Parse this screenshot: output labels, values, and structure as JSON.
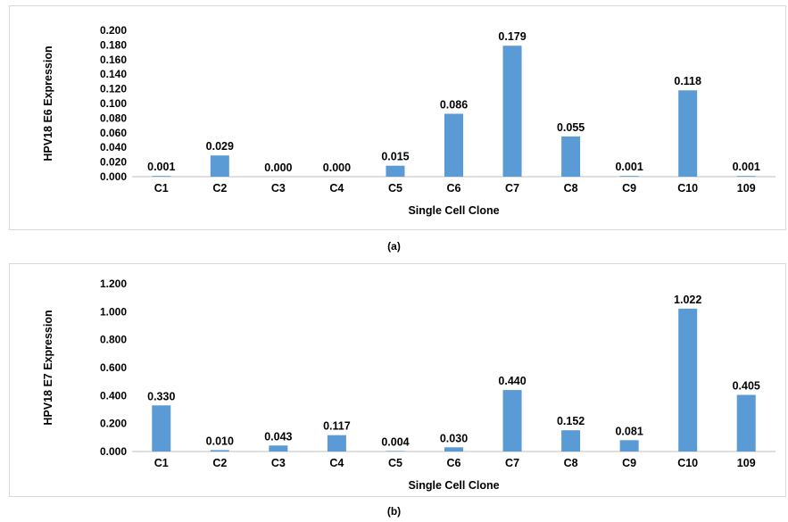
{
  "chart_data": [
    {
      "type": "bar",
      "panel_label": "(a)",
      "ylabel": "HPV18 E6 Expression",
      "xlabel": "Single Cell Clone",
      "categories": [
        "C1",
        "C2",
        "C3",
        "C4",
        "C5",
        "C6",
        "C7",
        "C8",
        "C9",
        "C10",
        "109"
      ],
      "values": [
        0.001,
        0.029,
        0.0,
        0.0,
        0.015,
        0.086,
        0.179,
        0.055,
        0.001,
        0.118,
        0.001
      ],
      "value_labels": [
        "0.001",
        "0.029",
        "0.000",
        "0.000",
        "0.015",
        "0.086",
        "0.179",
        "0.055",
        "0.001",
        "0.118",
        "0.001"
      ],
      "ylim": [
        0,
        0.2
      ],
      "yticks": [
        "0.000",
        "0.020",
        "0.040",
        "0.060",
        "0.080",
        "0.100",
        "0.120",
        "0.140",
        "0.160",
        "0.180",
        "0.200"
      ],
      "grid": false,
      "bar_color": "#5b9bd5"
    },
    {
      "type": "bar",
      "panel_label": "(b)",
      "ylabel": "HPV18 E7 Expression",
      "xlabel": "Single Cell Clone",
      "categories": [
        "C1",
        "C2",
        "C3",
        "C4",
        "C5",
        "C6",
        "C7",
        "C8",
        "C9",
        "C10",
        "109"
      ],
      "values": [
        0.33,
        0.01,
        0.043,
        0.117,
        0.004,
        0.03,
        0.44,
        0.152,
        0.081,
        1.022,
        0.405
      ],
      "value_labels": [
        "0.330",
        "0.010",
        "0.043",
        "0.117",
        "0.004",
        "0.030",
        "0.440",
        "0.152",
        "0.081",
        "1.022",
        "0.405"
      ],
      "ylim": [
        0,
        1.2
      ],
      "yticks": [
        "0.000",
        "0.200",
        "0.400",
        "0.600",
        "0.800",
        "1.000",
        "1.200"
      ],
      "grid": false,
      "bar_color": "#5b9bd5"
    }
  ]
}
